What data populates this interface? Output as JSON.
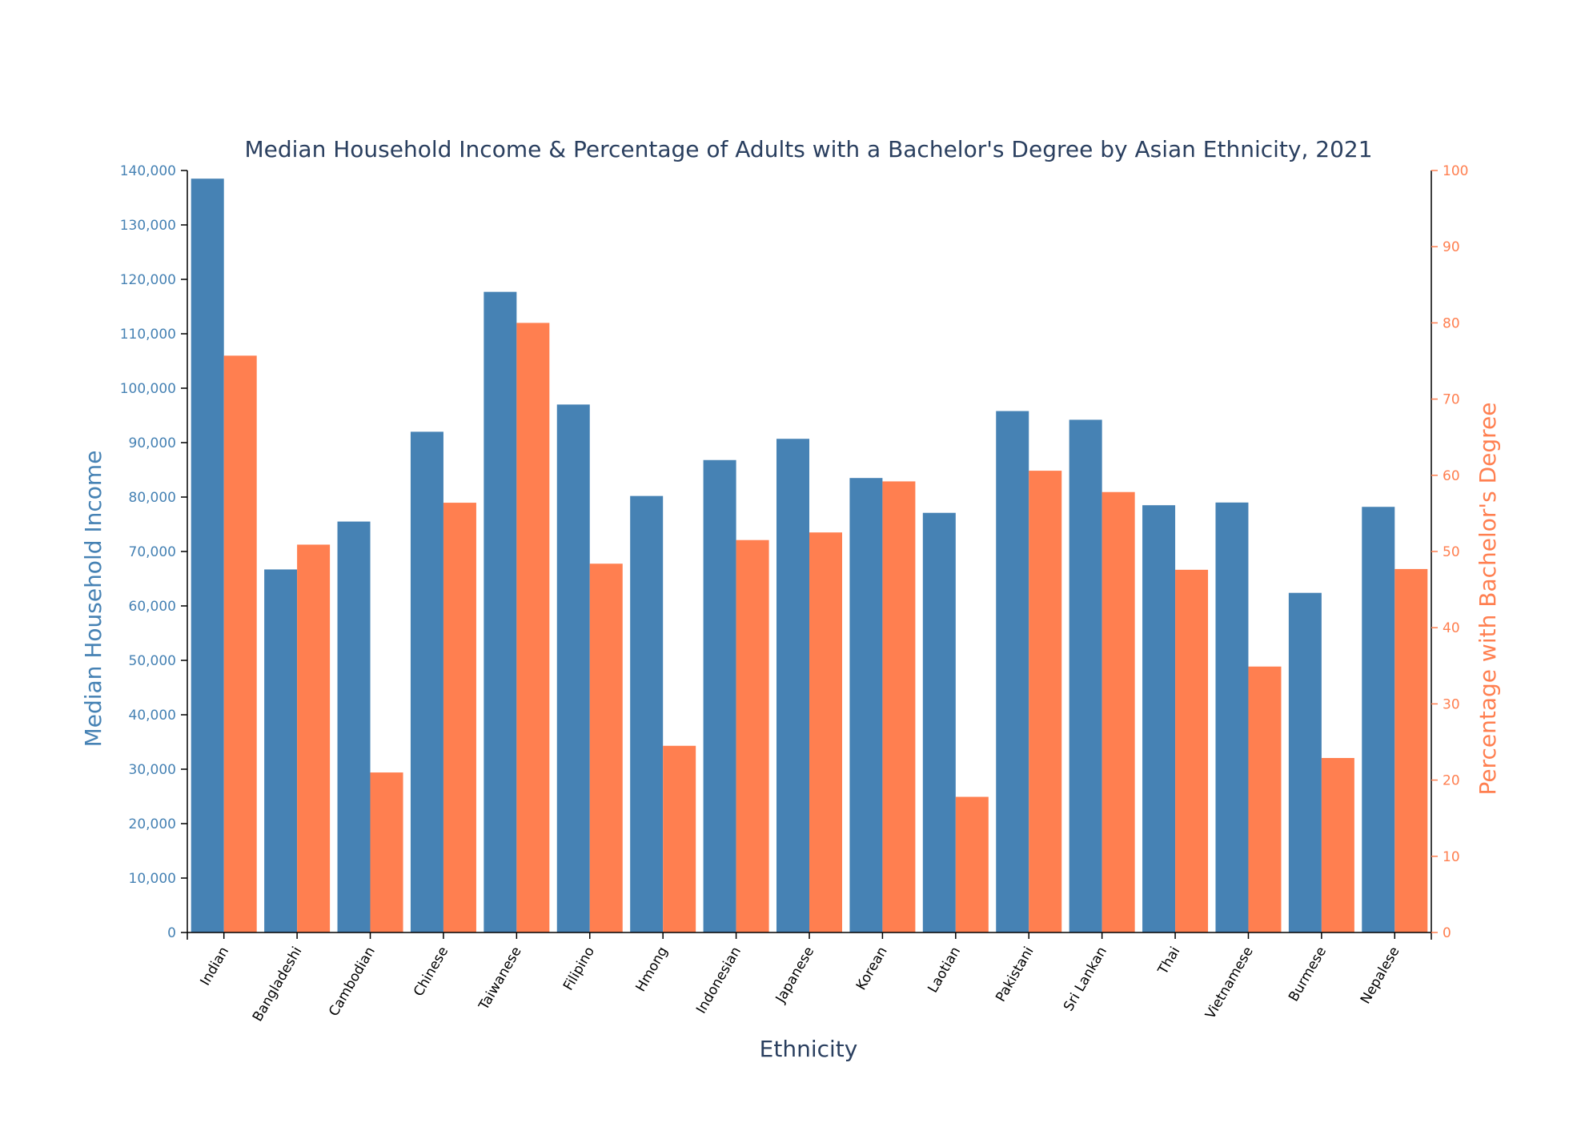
{
  "chart_data": {
    "type": "bar",
    "title": "Median Household Income & Percentage of Adults with a Bachelor's Degree by Asian Ethnicity, 2021",
    "xlabel": "Ethnicity",
    "ylabel": "Median Household Income",
    "y2label": "Percentage with Bachelor's Degree",
    "ylim": [
      0,
      140000
    ],
    "y2lim": [
      0,
      100
    ],
    "yticks": [
      "0",
      "10,000",
      "20,000",
      "30,000",
      "40,000",
      "50,000",
      "60,000",
      "70,000",
      "80,000",
      "90,000",
      "100,000",
      "110,000",
      "120,000",
      "130,000",
      "140,000"
    ],
    "y2ticks": [
      "0",
      "10",
      "20",
      "30",
      "40",
      "50",
      "60",
      "70",
      "80",
      "90",
      "100"
    ],
    "categories": [
      "Indian",
      "Bangladeshi",
      "Cambodian",
      "Chinese",
      "Taiwanese",
      "Filipino",
      "Hmong",
      "Indonesian",
      "Japanese",
      "Korean",
      "Laotian",
      "Pakistani",
      "Sri Lankan",
      "Thai",
      "Vietnamese",
      "Burmese",
      "Nepalese"
    ],
    "series": [
      {
        "axis": "left",
        "color": "#4682b4",
        "values": [
          138500,
          66700,
          75500,
          92000,
          117700,
          97000,
          80200,
          86800,
          90700,
          83500,
          77100,
          95800,
          94200,
          78500,
          79000,
          62400,
          78200
        ]
      },
      {
        "axis": "right",
        "color": "#ff7f50",
        "values": [
          75.7,
          50.9,
          21.0,
          56.4,
          80.0,
          48.4,
          24.5,
          51.5,
          52.5,
          59.2,
          17.8,
          60.6,
          57.8,
          47.6,
          34.9,
          22.9,
          47.7
        ]
      }
    ],
    "grid": false,
    "legend": "none"
  },
  "colors": {
    "left_axis": "#4682b4",
    "right_axis": "#ff7f50",
    "title": "#2a3f5f",
    "x_axis_title": "#2a3f5f",
    "category_labels": "#000000"
  }
}
